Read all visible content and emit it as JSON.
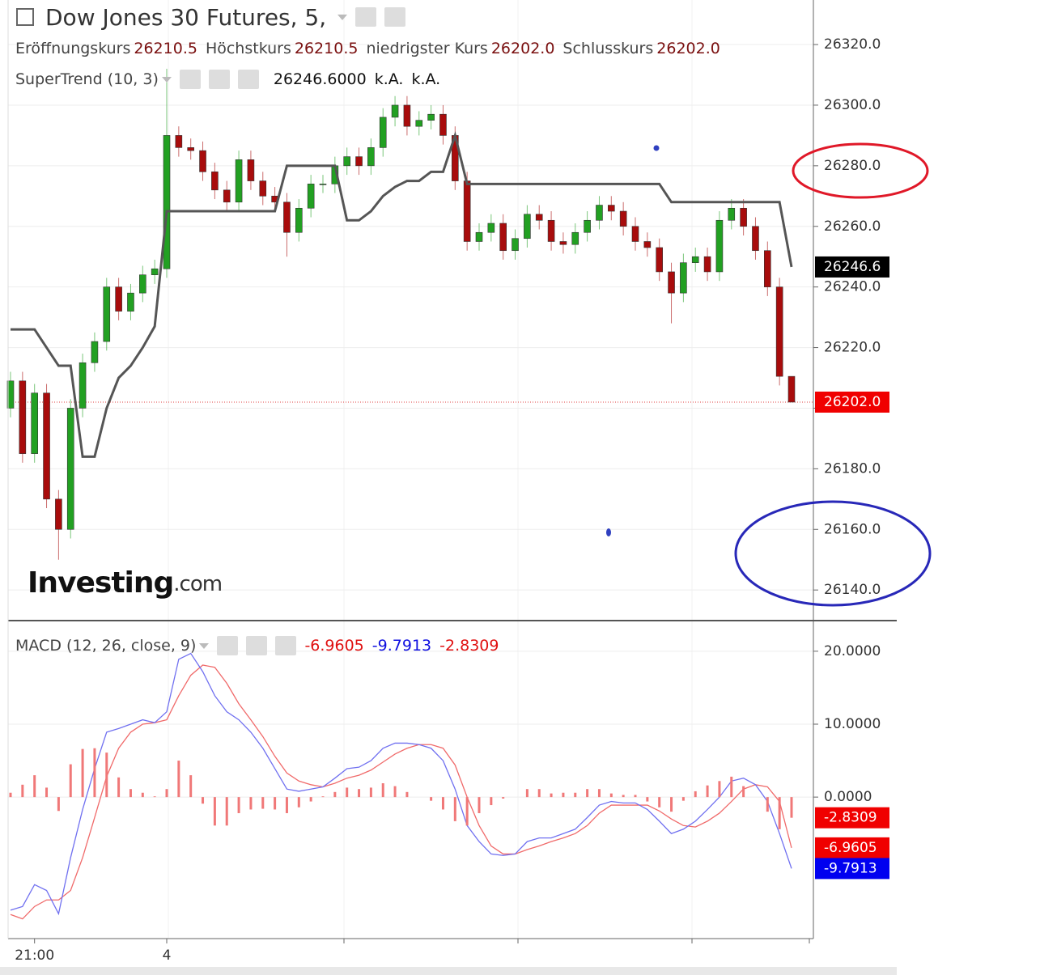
{
  "chart_data": [
    {
      "type": "candlestick",
      "title": "Dow Jones 30 Futures, 5,",
      "ohlc_labels": [
        {
          "name": "Eröffnungskurs",
          "label": "26210.5"
        },
        {
          "name": "Höchstkurs",
          "label": "26210.5"
        },
        {
          "name": "niedrigster Kurs",
          "label": "26202.0"
        },
        {
          "name": "Schlusskurs",
          "label": "26202.0"
        }
      ],
      "categories": [
        null,
        null,
        "21:00",
        null,
        null,
        null,
        null,
        null,
        null,
        null,
        null,
        null,
        null,
        "4",
        null,
        null,
        null,
        null,
        null,
        null,
        null,
        null,
        null,
        null,
        null,
        null,
        null,
        null,
        null,
        null,
        null,
        null,
        null,
        null,
        null,
        null,
        null,
        null,
        null,
        null,
        null,
        null,
        null,
        null,
        null,
        null,
        null,
        null,
        null,
        null,
        null,
        null,
        null,
        null,
        null,
        null,
        null,
        null,
        null,
        null,
        null,
        null,
        null,
        null,
        null,
        null
      ],
      "open": [
        26200,
        26209,
        26185,
        26205,
        26170,
        26160,
        26200,
        26215,
        26222,
        26240,
        26232,
        26238,
        26244,
        26246,
        26290,
        26286,
        26285,
        26278,
        26272,
        26268,
        26282,
        26275,
        26270,
        26268,
        26258,
        26266,
        26274,
        26274,
        26280,
        26283,
        26280,
        26286,
        26296,
        26300,
        26293,
        26295,
        26297,
        26290,
        26275,
        26255,
        26258,
        26261,
        26252,
        26256,
        26264,
        26262,
        26255,
        26254,
        26258,
        26262,
        26267,
        26265,
        26260,
        26255,
        26253,
        26245,
        26238,
        26248,
        26250,
        26245,
        26262,
        26266,
        26260,
        26252,
        26240,
        26210.5
      ],
      "high": [
        26212,
        26212,
        26208,
        26208,
        26173,
        26203,
        26218,
        26225,
        26243,
        26243,
        26241,
        26247,
        26249,
        26312,
        26293,
        26289,
        26288,
        26281,
        26275,
        26285,
        26285,
        26278,
        26273,
        26271,
        26269,
        26277,
        26277,
        26283,
        26286,
        26286,
        26289,
        26299,
        26303,
        26303,
        26298,
        26300,
        26300,
        26293,
        26278,
        26261,
        26264,
        26264,
        26259,
        26267,
        26267,
        26265,
        26258,
        26261,
        26265,
        26270,
        26270,
        26268,
        26263,
        26258,
        26256,
        26248,
        26251,
        26253,
        26253,
        26265,
        26269,
        26269,
        26263,
        26255,
        26243,
        26210.5
      ],
      "low": [
        26197,
        26182,
        26182,
        26167,
        26150,
        26157,
        26197,
        26212,
        26219,
        26229,
        26229,
        26235,
        26241,
        26243,
        26283,
        26282,
        26275,
        26269,
        26265,
        26265,
        26272,
        26267,
        26265,
        26250,
        26255,
        26263,
        26271,
        26271,
        26277,
        26277,
        26277,
        26283,
        26293,
        26290,
        26290,
        26292,
        26287,
        26272,
        26252,
        26252,
        26255,
        26249,
        26249,
        26253,
        26259,
        26252,
        26251,
        26251,
        26255,
        26259,
        26262,
        26257,
        26252,
        26250,
        26242,
        26228,
        26235,
        26245,
        26242,
        26242,
        26259,
        26257,
        26249,
        26237,
        26207.5,
        26202
      ],
      "close": [
        26209,
        26185,
        26205,
        26170,
        26160,
        26200,
        26215,
        26222,
        26240,
        26232,
        26238,
        26244,
        26246,
        26290,
        26286,
        26285,
        26278,
        26272,
        26268,
        26282,
        26275,
        26270,
        26268,
        26258,
        26266,
        26274,
        26274,
        26280,
        26283,
        26280,
        26286,
        26296,
        26300,
        26293,
        26295,
        26297,
        26290,
        26275,
        26255,
        26258,
        26261,
        26252,
        26256,
        26264,
        26262,
        26255,
        26254,
        26258,
        26262,
        26267,
        26265,
        26260,
        26255,
        26253,
        26245,
        26238,
        26248,
        26250,
        26245,
        26262,
        26266,
        26260,
        26252,
        26240,
        26210.5,
        26202
      ],
      "last_label": "26202.0",
      "up_color": "#22a022",
      "down_color": "#a80c0c",
      "series": [
        {
          "name": "SuperTrend (10, 3)",
          "color": "#555555",
          "legend_values": [
            "26246.6000",
            "k.A.",
            "k.A."
          ],
          "values": [
            26226,
            26226,
            26226,
            26220,
            26214,
            26214,
            26184,
            26184,
            26200,
            26210,
            26214,
            26220,
            26227,
            26265,
            26265,
            26265,
            26265,
            26265,
            26265,
            26265,
            26265,
            26265,
            26265,
            26280,
            26280,
            26280,
            26280,
            26280,
            26262,
            26262,
            26265,
            26270,
            26273,
            26275,
            26275,
            26278,
            26278,
            26290,
            26274,
            26274,
            26274,
            26274,
            26274,
            26274,
            26274,
            26274,
            26274,
            26274,
            26274,
            26274,
            26274,
            26274,
            26274,
            26274,
            26274,
            26268,
            26268,
            26268,
            26268,
            26268,
            26268,
            26268,
            26268,
            26268,
            26268,
            26246.6
          ],
          "value_labels": [
            null,
            null,
            null,
            null,
            null,
            null,
            null,
            null,
            null,
            null,
            null,
            null,
            null,
            null,
            null,
            null,
            null,
            null,
            null,
            null,
            null,
            null,
            null,
            null,
            null,
            null,
            null,
            null,
            null,
            null,
            null,
            null,
            null,
            null,
            null,
            null,
            null,
            null,
            null,
            null,
            null,
            null,
            null,
            null,
            null,
            null,
            null,
            null,
            null,
            null,
            null,
            null,
            null,
            null,
            null,
            null,
            null,
            null,
            null,
            null,
            null,
            null,
            null,
            null,
            null,
            "26246.6"
          ]
        }
      ],
      "ylim": [
        26129.9,
        26334.7
      ],
      "yticks": [
        {
          "value": 26140,
          "label": "26140.0"
        },
        {
          "value": 26160,
          "label": "26160.0"
        },
        {
          "value": 26180,
          "label": "26180.0"
        },
        {
          "value": 26200,
          "label": "26200.0"
        },
        {
          "value": 26220,
          "label": "26220.0"
        },
        {
          "value": 26240,
          "label": "26240.0"
        },
        {
          "value": 26260,
          "label": "26260.0"
        },
        {
          "value": 26280,
          "label": "26280.0"
        },
        {
          "value": 26300,
          "label": "26300.0"
        },
        {
          "value": 26320,
          "label": "26320.0"
        }
      ],
      "grid": true,
      "watermark": [
        "Investing",
        ".com"
      ]
    },
    {
      "type": "macd",
      "title": "MACD (12, 26, close, 9)",
      "series": [
        {
          "kind": "line",
          "color": "#f06a6a",
          "label_color": "#e01010",
          "values": [
            -16.1,
            -16.7,
            -15,
            -14.1,
            -14.1,
            -12.8,
            -8.3,
            -2.8,
            2.8,
            6.7,
            8.9,
            10,
            10.2,
            10.6,
            13.9,
            16.7,
            18.1,
            17.8,
            15.6,
            12.8,
            10.6,
            8.3,
            5.6,
            3.3,
            2.2,
            1.7,
            1.4,
            1.9,
            2.6,
            3,
            3.7,
            4.8,
            5.9,
            6.7,
            7.2,
            7.2,
            6.7,
            4.4,
            0,
            -3.9,
            -6.7,
            -7.8,
            -7.8,
            -7.2,
            -6.7,
            -6.1,
            -5.6,
            -5,
            -3.9,
            -2.2,
            -1.1,
            -1.1,
            -1.1,
            -1.1,
            -1.9,
            -3,
            -3.9,
            -4.1,
            -3.3,
            -2.2,
            -0.6,
            1.1,
            1.7,
            1.4,
            -0.6,
            -6.9605
          ],
          "last_label": "-6.9605"
        },
        {
          "kind": "line",
          "color": "#7070f0",
          "label_color": "#1010e0",
          "values": [
            -15.5,
            -15,
            -12,
            -12.8,
            -16,
            -8.3,
            -1.7,
            3.9,
            8.9,
            9.4,
            10,
            10.6,
            10.2,
            11.7,
            18.9,
            19.7,
            17.2,
            13.9,
            11.7,
            10.6,
            8.9,
            6.7,
            3.9,
            1.1,
            0.8,
            1.1,
            1.4,
            2.6,
            3.9,
            4.1,
            5,
            6.7,
            7.4,
            7.4,
            7.2,
            6.7,
            5,
            1.1,
            -3.9,
            -6.1,
            -7.8,
            -8,
            -7.8,
            -6.1,
            -5.6,
            -5.6,
            -5,
            -4.4,
            -2.8,
            -1.1,
            -0.6,
            -0.8,
            -0.8,
            -1.7,
            -3.3,
            -5,
            -4.4,
            -3.3,
            -1.7,
            0,
            2.2,
            2.6,
            1.7,
            -0.6,
            -5,
            -9.7913
          ],
          "last_label": "-9.7913"
        },
        {
          "kind": "bar",
          "color": "#f07878",
          "label_color": "#e01010",
          "values": [
            0.6,
            1.7,
            3,
            1.3,
            -1.9,
            4.5,
            6.6,
            6.7,
            6.1,
            2.7,
            1.1,
            0.6,
            0.1,
            1.1,
            5,
            3,
            -0.9,
            -3.9,
            -3.9,
            -2.2,
            -1.7,
            -1.6,
            -1.7,
            -2.2,
            -1.4,
            -0.6,
            0.1,
            0.7,
            1.3,
            1.1,
            1.3,
            1.9,
            1.5,
            0.7,
            0,
            -0.5,
            -1.7,
            -3.3,
            -3.9,
            -2.2,
            -1.1,
            -0.2,
            0,
            1.1,
            1.1,
            0.5,
            0.6,
            0.6,
            1.1,
            1.1,
            0.5,
            0.3,
            0.3,
            -0.6,
            -1.4,
            -2,
            -0.5,
            0.8,
            1.6,
            2.2,
            2.8,
            1.5,
            0,
            -2,
            -4.4,
            -2.8309
          ],
          "last_label": "-2.8309"
        }
      ],
      "ylim": [
        -19.4,
        24.2
      ],
      "yticks": [
        {
          "value": 0,
          "label": "0.0000"
        },
        {
          "value": 10,
          "label": "10.0000"
        },
        {
          "value": 20,
          "label": "20.0000"
        }
      ],
      "grid": true
    }
  ]
}
